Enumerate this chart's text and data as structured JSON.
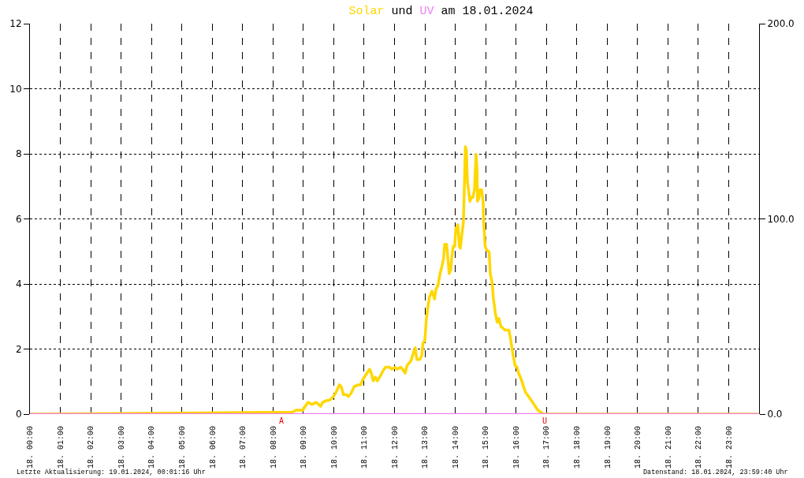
{
  "chart_data": {
    "type": "line",
    "title": "Solar und UV am 18.01.2024",
    "series": [
      {
        "color": "#ffd700",
        "axis": "y2",
        "x": [
          "2024-01-18T00:00",
          "2024-01-18T08:38",
          "2024-01-18T08:46",
          "2024-01-18T08:59",
          "2024-01-18T09:01",
          "2024-01-18T09:09",
          "2024-01-18T09:17",
          "2024-01-18T09:25",
          "2024-01-18T09:30",
          "2024-01-18T09:34",
          "2024-01-18T09:38",
          "2024-01-18T09:46",
          "2024-01-18T09:50",
          "2024-01-18T09:56",
          "2024-01-18T10:02",
          "2024-01-18T10:06",
          "2024-01-18T10:11",
          "2024-01-18T10:15",
          "2024-01-18T10:19",
          "2024-01-18T10:25",
          "2024-01-18T10:29",
          "2024-01-18T10:35",
          "2024-01-18T10:40",
          "2024-01-18T10:48",
          "2024-01-18T10:53",
          "2024-01-18T10:58",
          "2024-01-18T11:03",
          "2024-01-18T11:11",
          "2024-01-18T11:14",
          "2024-01-18T11:18",
          "2024-01-18T11:22",
          "2024-01-18T11:26",
          "2024-01-18T11:33",
          "2024-01-18T11:37",
          "2024-01-18T11:42",
          "2024-01-18T11:50",
          "2024-01-18T11:55",
          "2024-01-18T12:01",
          "2024-01-18T12:05",
          "2024-01-18T12:12",
          "2024-01-18T12:16",
          "2024-01-18T12:21",
          "2024-01-18T12:25",
          "2024-01-18T12:32",
          "2024-01-18T12:37",
          "2024-01-18T12:41",
          "2024-01-18T12:44",
          "2024-01-18T12:50",
          "2024-01-18T12:54",
          "2024-01-18T12:56",
          "2024-01-18T13:00",
          "2024-01-18T13:03",
          "2024-01-18T13:05",
          "2024-01-18T13:09",
          "2024-01-18T13:14",
          "2024-01-18T13:19",
          "2024-01-18T13:22",
          "2024-01-18T13:26",
          "2024-01-18T13:30",
          "2024-01-18T13:34",
          "2024-01-18T13:37",
          "2024-01-18T13:39",
          "2024-01-18T13:43",
          "2024-01-18T13:46",
          "2024-01-18T13:48",
          "2024-01-18T13:51",
          "2024-01-18T13:53",
          "2024-01-18T13:56",
          "2024-01-18T13:59",
          "2024-01-18T14:01",
          "2024-01-18T14:05",
          "2024-01-18T14:08",
          "2024-01-18T14:10",
          "2024-01-18T14:13",
          "2024-01-18T14:16",
          "2024-01-18T14:17",
          "2024-01-18T14:20",
          "2024-01-18T14:22",
          "2024-01-18T14:24",
          "2024-01-18T14:28",
          "2024-01-18T14:29",
          "2024-01-18T14:32",
          "2024-01-18T14:35",
          "2024-01-18T14:38",
          "2024-01-18T14:41",
          "2024-01-18T14:43",
          "2024-01-18T14:44",
          "2024-01-18T14:47",
          "2024-01-18T14:49",
          "2024-01-18T14:52",
          "2024-01-18T14:55",
          "2024-01-18T14:56",
          "2024-01-18T14:59",
          "2024-01-18T15:02",
          "2024-01-18T15:07",
          "2024-01-18T15:09",
          "2024-01-18T15:13",
          "2024-01-18T15:15",
          "2024-01-18T15:19",
          "2024-01-18T15:22",
          "2024-01-18T15:23",
          "2024-01-18T15:26",
          "2024-01-18T15:30",
          "2024-01-18T15:34",
          "2024-01-18T15:38",
          "2024-01-18T15:46",
          "2024-01-18T15:49",
          "2024-01-18T15:53",
          "2024-01-18T15:58",
          "2024-01-18T16:02",
          "2024-01-18T16:05",
          "2024-01-18T16:10",
          "2024-01-18T16:15",
          "2024-01-18T16:19",
          "2024-01-18T16:25",
          "2024-01-18T16:33",
          "2024-01-18T16:38",
          "2024-01-18T16:43",
          "2024-01-18T16:49",
          "2024-01-18T16:54",
          "2024-01-18T23:59"
        ],
        "values": [
          0,
          1,
          2,
          2,
          3,
          6,
          5,
          6,
          5,
          4,
          6,
          7,
          7,
          8,
          10,
          12,
          15,
          14,
          10,
          10,
          9,
          11,
          14,
          15,
          15,
          18,
          20,
          23,
          21,
          17,
          19,
          17,
          20,
          22,
          24,
          24,
          23,
          24,
          23,
          24,
          23,
          21,
          25,
          27,
          31,
          34,
          28,
          28,
          30,
          36,
          38,
          49,
          53,
          60,
          63,
          59,
          64,
          66,
          72,
          76,
          80,
          87,
          87,
          78,
          72,
          74,
          80,
          86,
          86,
          95,
          97,
          86,
          85,
          92,
          98,
          107,
          137,
          135,
          119,
          111,
          109,
          111,
          111,
          115,
          133,
          125,
          109,
          111,
          115,
          115,
          109,
          99,
          86,
          84,
          83,
          72,
          67,
          60,
          52,
          48,
          47,
          49,
          45,
          44,
          43,
          43,
          39,
          32,
          25,
          24,
          21,
          18,
          14,
          11,
          9,
          6,
          4,
          2,
          1,
          0,
          0
        ]
      },
      {
        "color": "#ee82ee",
        "x": [
          "2024-01-18T00:00",
          "2024-01-18T23:59"
        ],
        "values": [
          0,
          0
        ]
      }
    ],
    "xlim": [
      "2024-01-18T00:00",
      "2024-01-19T00:00"
    ],
    "xticks": [
      {
        "value": "2024-01-18T00:00",
        "label": "18. 00:00"
      },
      {
        "value": "2024-01-18T01:00",
        "label": "18. 01:00"
      },
      {
        "value": "2024-01-18T02:00",
        "label": "18. 02:00"
      },
      {
        "value": "2024-01-18T03:00",
        "label": "18. 03:00"
      },
      {
        "value": "2024-01-18T04:00",
        "label": "18. 04:00"
      },
      {
        "value": "2024-01-18T05:00",
        "label": "18. 05:00"
      },
      {
        "value": "2024-01-18T06:00",
        "label": "18. 06:00"
      },
      {
        "value": "2024-01-18T07:00",
        "label": "18. 07:00"
      },
      {
        "value": "2024-01-18T08:00",
        "label": "18. 08:00"
      },
      {
        "value": "2024-01-18T09:00",
        "label": "18. 09:00"
      },
      {
        "value": "2024-01-18T10:00",
        "label": "18. 10:00"
      },
      {
        "value": "2024-01-18T11:00",
        "label": "18. 11:00"
      },
      {
        "value": "2024-01-18T12:00",
        "label": "18. 12:00"
      },
      {
        "value": "2024-01-18T13:00",
        "label": "18. 13:00"
      },
      {
        "value": "2024-01-18T14:00",
        "label": "18. 14:00"
      },
      {
        "value": "2024-01-18T15:00",
        "label": "18. 15:00"
      },
      {
        "value": "2024-01-18T16:00",
        "label": "18. 16:00"
      },
      {
        "value": "2024-01-18T17:00",
        "label": "18. 17:00"
      },
      {
        "value": "2024-01-18T18:00",
        "label": "18. 18:00"
      },
      {
        "value": "2024-01-18T19:00",
        "label": "18. 19:00"
      },
      {
        "value": "2024-01-18T20:00",
        "label": "18. 20:00"
      },
      {
        "value": "2024-01-18T21:00",
        "label": "18. 21:00"
      },
      {
        "value": "2024-01-18T22:00",
        "label": "18. 22:00"
      },
      {
        "value": "2024-01-18T23:00",
        "label": "18. 23:00"
      }
    ],
    "ylim": [
      0,
      12
    ],
    "yticks": [
      0,
      2,
      4,
      6,
      8,
      10,
      12
    ],
    "y2lim": [
      0,
      200
    ],
    "y2ticks": [
      {
        "value": 0,
        "label": "0.0"
      },
      {
        "value": 100,
        "label": "100.0"
      },
      {
        "value": 200,
        "label": "200.0"
      }
    ],
    "grid": true,
    "legend": false,
    "line_style": "solid",
    "annotations": [
      {
        "text": "A",
        "x": "2024-01-18T08:16",
        "y": 0
      },
      {
        "text": "U",
        "x": "2024-01-18T16:56",
        "y": 0
      },
      "Letzte Aktualisierung: 19.01.2024, 00:01:16 Uhr",
      "Datenstand: 18.01.2024, 23:59:40 Uhr"
    ]
  }
}
